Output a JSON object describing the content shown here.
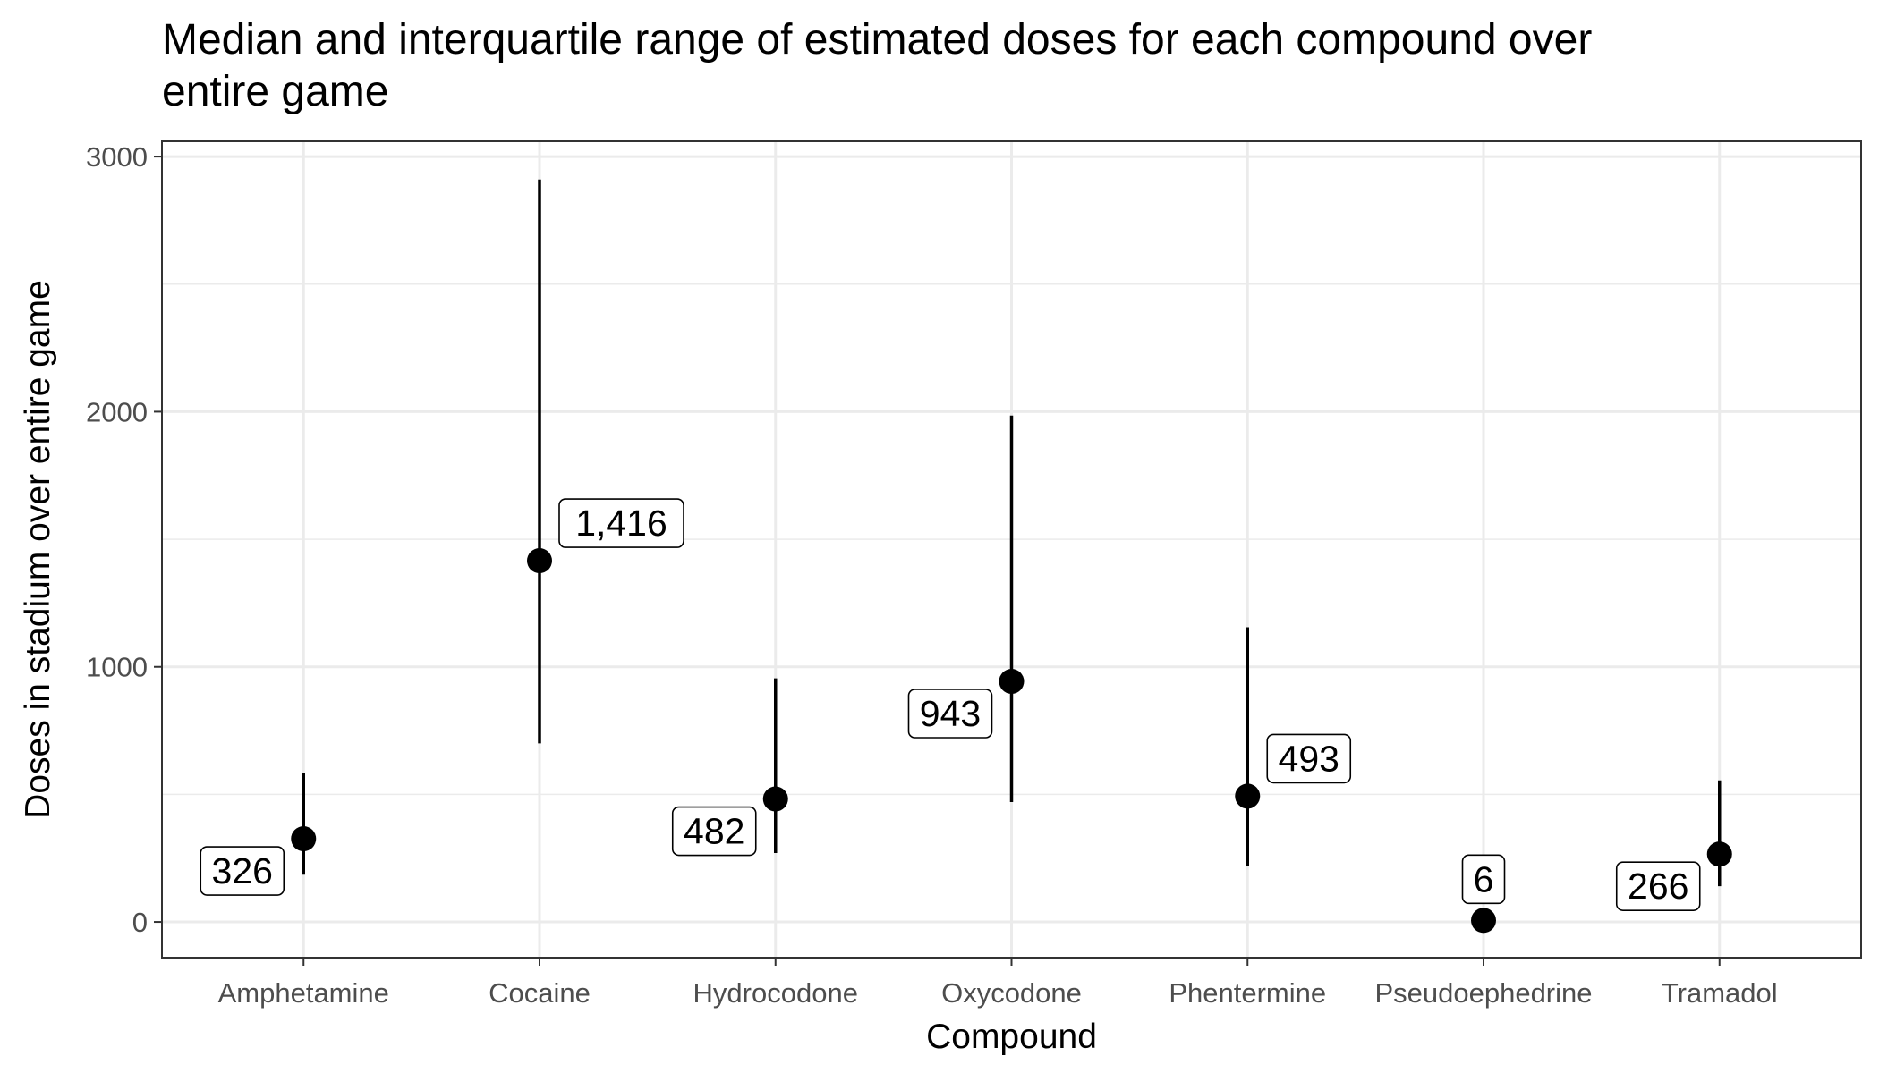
{
  "chart_data": {
    "type": "pointrange",
    "title_lines": [
      "Median and interquartile range of estimated doses for each compound over",
      "entire game"
    ],
    "xlabel": "Compound",
    "ylabel": "Doses in stadium over entire game",
    "categories": [
      "Amphetamine",
      "Cocaine",
      "Hydrocodone",
      "Oxycodone",
      "Phentermine",
      "Pseudoephedrine",
      "Tramadol"
    ],
    "median": [
      326,
      1416,
      482,
      943,
      493,
      6,
      266
    ],
    "q1": [
      185,
      700,
      270,
      470,
      220,
      2,
      140
    ],
    "q3": [
      585,
      2910,
      955,
      1985,
      1155,
      10,
      555
    ],
    "labels": [
      "326",
      "1,416",
      "482",
      "943",
      "493",
      "6",
      "266"
    ],
    "label_side": [
      "left",
      "right",
      "left",
      "left",
      "right",
      "above",
      "left"
    ],
    "ylim": [
      -140,
      3060
    ],
    "yticks": [
      0,
      1000,
      2000,
      3000
    ],
    "yminor": [
      500,
      1500,
      2500
    ],
    "grid": true,
    "theme": "bw",
    "colors": {
      "point": "#000000",
      "grid": "#ebebeb",
      "panel_border": "#333333"
    }
  }
}
